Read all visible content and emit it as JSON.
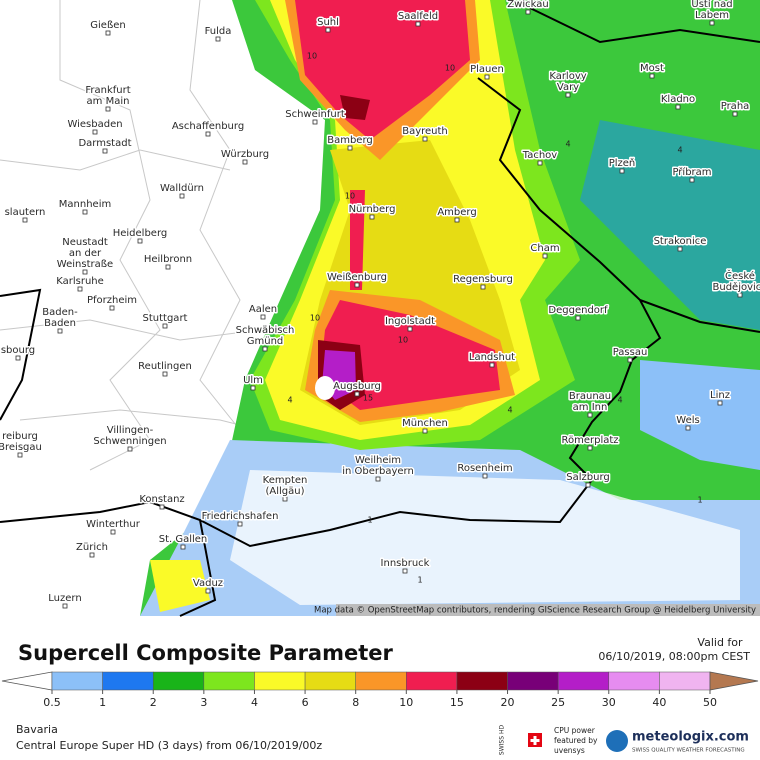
{
  "map": {
    "cities": [
      [
        "Gießen"
      ],
      [
        "Fulda"
      ],
      [
        "Suhl"
      ],
      [
        "Saalfeld"
      ],
      [
        "Zwickau"
      ],
      [
        "Ústí nad",
        "Labem"
      ],
      [
        "Plauen"
      ],
      [
        "Most"
      ],
      [
        "Karlovy",
        "Vary"
      ],
      [
        "Frankfurt",
        "am Main"
      ],
      [
        "Wiesbaden"
      ],
      [
        "Aschaffenburg"
      ],
      [
        "Schweinfurt"
      ],
      [
        "Kladno"
      ],
      [
        "Praha"
      ],
      [
        "Bamberg"
      ],
      [
        "Bayreuth"
      ],
      [
        "Darmstadt"
      ],
      [
        "Würzburg"
      ],
      [
        "Tachov"
      ],
      [
        "Plzeň"
      ],
      [
        "Příbram"
      ],
      [
        "Walldürn"
      ],
      [
        "Nürnberg"
      ],
      [
        "Amberg"
      ],
      [
        "slautern"
      ],
      [
        "Mannheim"
      ],
      [
        "Heidelberg"
      ],
      [
        "Neustadt",
        "an der",
        "Weinstraße"
      ],
      [
        "Heilbronn"
      ],
      [
        "Cham"
      ],
      [
        "Strakonice"
      ],
      [
        "Weißenburg"
      ],
      [
        "Regensburg"
      ],
      [
        "České",
        "Budějovice"
      ],
      [
        "Karlsruhe"
      ],
      [
        "Pforzheim"
      ],
      [
        "Aalen"
      ],
      [
        "Deggendorf"
      ],
      [
        "Baden-",
        "Baden"
      ],
      [
        "Stuttgart"
      ],
      [
        "Ingolstadt"
      ],
      [
        "Schwäbisch",
        "Gmünd"
      ],
      [
        "Passau"
      ],
      [
        "Landshut"
      ],
      [
        "sbourg"
      ],
      [
        "Reutlingen"
      ],
      [
        "Ulm"
      ],
      [
        "Augsburg"
      ],
      [
        "Braunau",
        "am Inn"
      ],
      [
        "Linz"
      ],
      [
        "reiburg",
        "Breisgau"
      ],
      [
        "Villingen-",
        "Schwenningen"
      ],
      [
        "München"
      ],
      [
        "Wels"
      ],
      [
        "Römerplatz"
      ],
      [
        "Weilheim",
        "in Oberbayern"
      ],
      [
        "Rosenheim"
      ],
      [
        "Kempten",
        "(Allgäu)"
      ],
      [
        "Salzburg"
      ],
      [
        "Konstanz"
      ],
      [
        "Friedrichshafen"
      ],
      [
        "Winterthur"
      ],
      [
        "St. Gallen"
      ],
      [
        "Zürich"
      ],
      [
        "Innsbruck"
      ],
      [
        "Vaduz"
      ],
      [
        "Luzern"
      ]
    ],
    "contour_labels": [
      "10",
      "10",
      "4",
      "10",
      "10",
      "4",
      "4",
      "1",
      "15",
      "10",
      "4",
      "1",
      "4",
      "1"
    ],
    "attribution": "Map data © OpenStreetMap contributors, rendering GIScience Research Group @ Heidelberg University"
  },
  "legend": {
    "title": "Supercell Composite Parameter",
    "valid_label": "Valid for",
    "valid_time": "06/10/2019, 08:00pm CEST",
    "ticks": [
      0.5,
      1,
      2,
      3,
      4,
      6,
      8,
      10,
      15,
      20,
      25,
      30,
      40,
      50
    ],
    "colors": [
      "#8cc0f8",
      "#1e78f0",
      "#19b419",
      "#7de61e",
      "#fafa28",
      "#e6dc14",
      "#fa9628",
      "#f01e50",
      "#8c0014",
      "#780078",
      "#b41ec8",
      "#e68cf0",
      "#f0b4f0"
    ],
    "low_color": "#ffffff",
    "high_color": "#b47850"
  },
  "footer": {
    "region": "Bavaria",
    "model": "Central Europe Super HD (3 days) from 06/10/2019/00z",
    "swiss_hd": "SWISS HD",
    "cpu_power": [
      "CPU power",
      "featured by",
      "uvensys"
    ],
    "brand": "meteologix.com",
    "tagline": "SWISS QUALITY WEATHER FORECASTING"
  }
}
